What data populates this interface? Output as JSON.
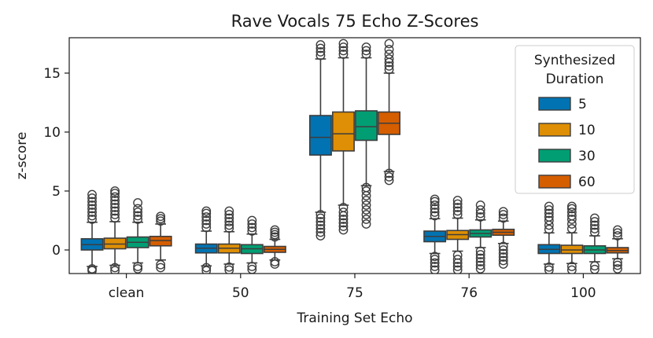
{
  "chart_data": {
    "type": "box",
    "title": "Rave Vocals 75 Echo Z-Scores",
    "xlabel": "Training Set Echo",
    "ylabel": "z-score",
    "ylim": [
      -2,
      18
    ],
    "yticks": [
      0,
      5,
      10,
      15
    ],
    "grid": false,
    "categories": [
      "clean",
      "50",
      "75",
      "76",
      "100"
    ],
    "legend": {
      "title_lines": [
        "Synthesized",
        "Duration"
      ],
      "placement": "top-right"
    },
    "series": [
      {
        "name": "5",
        "color": "#0173b2",
        "boxes": [
          {
            "q1": 0.0,
            "median": 0.45,
            "q3": 0.95,
            "whisker_low": -1.4,
            "whisker_high": 2.35,
            "outliers": [
              -1.75,
              -1.6,
              2.6,
              2.9,
              3.2,
              3.5,
              3.8,
              4.1,
              4.4,
              4.7
            ]
          },
          {
            "q1": -0.25,
            "median": 0.15,
            "q3": 0.5,
            "whisker_low": -1.35,
            "whisker_high": 1.6,
            "outliers": [
              -1.75,
              -1.5,
              1.9,
              2.2,
              2.5,
              2.8,
              3.1,
              3.3
            ]
          },
          {
            "q1": 8.05,
            "median": 9.55,
            "q3": 11.4,
            "whisker_low": 3.2,
            "whisker_high": 16.2,
            "outliers": [
              1.2,
              1.5,
              1.8,
              2.1,
              2.4,
              2.7,
              3.0,
              16.5,
              16.8,
              17.1,
              17.4
            ]
          },
          {
            "q1": 0.7,
            "median": 1.15,
            "q3": 1.6,
            "whisker_low": -0.3,
            "whisker_high": 2.65,
            "outliers": [
              -1.7,
              -1.4,
              -1.1,
              -0.8,
              -0.55,
              2.9,
              3.2,
              3.5,
              3.8,
              4.1,
              4.3
            ]
          },
          {
            "q1": -0.3,
            "median": 0.05,
            "q3": 0.45,
            "whisker_low": -1.2,
            "whisker_high": 1.45,
            "outliers": [
              -1.7,
              -1.45,
              1.75,
              2.1,
              2.5,
              2.8,
              3.1,
              3.4,
              3.7
            ]
          }
        ]
      },
      {
        "name": "10",
        "color": "#de8f05",
        "boxes": [
          {
            "q1": 0.1,
            "median": 0.5,
            "q3": 1.0,
            "whisker_low": -1.3,
            "whisker_high": 2.4,
            "outliers": [
              -1.75,
              -1.5,
              2.7,
              3.0,
              3.3,
              3.6,
              3.9,
              4.2,
              4.5,
              4.8,
              5.0
            ]
          },
          {
            "q1": -0.25,
            "median": 0.15,
            "q3": 0.5,
            "whisker_low": -1.2,
            "whisker_high": 1.55,
            "outliers": [
              -1.7,
              -1.45,
              1.85,
              2.1,
              2.4,
              2.7,
              3.0,
              3.3
            ]
          },
          {
            "q1": 8.4,
            "median": 9.85,
            "q3": 11.7,
            "whisker_low": 3.8,
            "whisker_high": 16.3,
            "outliers": [
              1.7,
              2.0,
              2.3,
              2.6,
              2.9,
              3.2,
              3.6,
              16.6,
              16.9,
              17.2,
              17.5
            ]
          },
          {
            "q1": 0.9,
            "median": 1.3,
            "q3": 1.65,
            "whisker_low": -0.1,
            "whisker_high": 2.7,
            "outliers": [
              -1.7,
              -1.4,
              -1.1,
              -0.8,
              -0.45,
              3.0,
              3.3,
              3.6,
              3.9,
              4.2
            ]
          },
          {
            "q1": -0.3,
            "median": 0.0,
            "q3": 0.4,
            "whisker_low": -1.15,
            "whisker_high": 1.45,
            "outliers": [
              -1.7,
              -1.4,
              1.8,
              2.2,
              2.6,
              2.9,
              3.2,
              3.5,
              3.7
            ]
          }
        ]
      },
      {
        "name": "30",
        "color": "#029e73",
        "boxes": [
          {
            "q1": 0.2,
            "median": 0.65,
            "q3": 1.1,
            "whisker_low": -1.1,
            "whisker_high": 2.35,
            "outliers": [
              -1.6,
              -1.4,
              2.6,
              2.9,
              3.2,
              3.5,
              4.0
            ]
          },
          {
            "q1": -0.3,
            "median": 0.1,
            "q3": 0.45,
            "whisker_low": -1.1,
            "whisker_high": 1.35,
            "outliers": [
              -1.65,
              -1.4,
              1.6,
              1.9,
              2.2,
              2.5
            ]
          },
          {
            "q1": 9.3,
            "median": 10.45,
            "q3": 11.8,
            "whisker_low": 5.45,
            "whisker_high": 16.3,
            "outliers": [
              2.2,
              2.6,
              3.0,
              3.4,
              3.8,
              4.2,
              4.6,
              5.0,
              5.3,
              16.6,
              16.9,
              17.2
            ]
          },
          {
            "q1": 1.1,
            "median": 1.4,
            "q3": 1.7,
            "whisker_low": 0.2,
            "whisker_high": 2.55,
            "outliers": [
              -1.6,
              -1.3,
              -1.0,
              -0.7,
              -0.4,
              -0.1,
              2.8,
              3.1,
              3.4,
              3.8
            ]
          },
          {
            "q1": -0.3,
            "median": 0.0,
            "q3": 0.35,
            "whisker_low": -1.0,
            "whisker_high": 1.2,
            "outliers": [
              -1.65,
              -1.35,
              1.5,
              1.8,
              2.1,
              2.4,
              2.7
            ]
          }
        ]
      },
      {
        "name": "60",
        "color": "#d55e00",
        "boxes": [
          {
            "q1": 0.35,
            "median": 0.8,
            "q3": 1.15,
            "whisker_low": -0.85,
            "whisker_high": 2.2,
            "outliers": [
              -1.5,
              -1.25,
              2.45,
              2.65,
              2.85
            ]
          },
          {
            "q1": -0.2,
            "median": 0.05,
            "q3": 0.3,
            "whisker_low": -0.85,
            "whisker_high": 0.9,
            "outliers": [
              -1.2,
              -1.0,
              1.1,
              1.3,
              1.5,
              1.7
            ]
          },
          {
            "q1": 9.8,
            "median": 10.75,
            "q3": 11.7,
            "whisker_low": 6.65,
            "whisker_high": 15.0,
            "outliers": [
              5.9,
              6.2,
              6.5,
              15.3,
              15.6,
              15.9,
              16.2,
              16.6,
              17.0,
              17.5
            ]
          },
          {
            "q1": 1.25,
            "median": 1.5,
            "q3": 1.75,
            "whisker_low": 0.55,
            "whisker_high": 2.45,
            "outliers": [
              -1.2,
              -0.9,
              -0.6,
              -0.3,
              0.0,
              0.3,
              2.7,
              3.0,
              3.25
            ]
          },
          {
            "q1": -0.25,
            "median": -0.05,
            "q3": 0.2,
            "whisker_low": -0.75,
            "whisker_high": 0.95,
            "outliers": [
              -1.6,
              -1.3,
              -1.05,
              1.2,
              1.45,
              1.7
            ]
          }
        ]
      }
    ]
  }
}
